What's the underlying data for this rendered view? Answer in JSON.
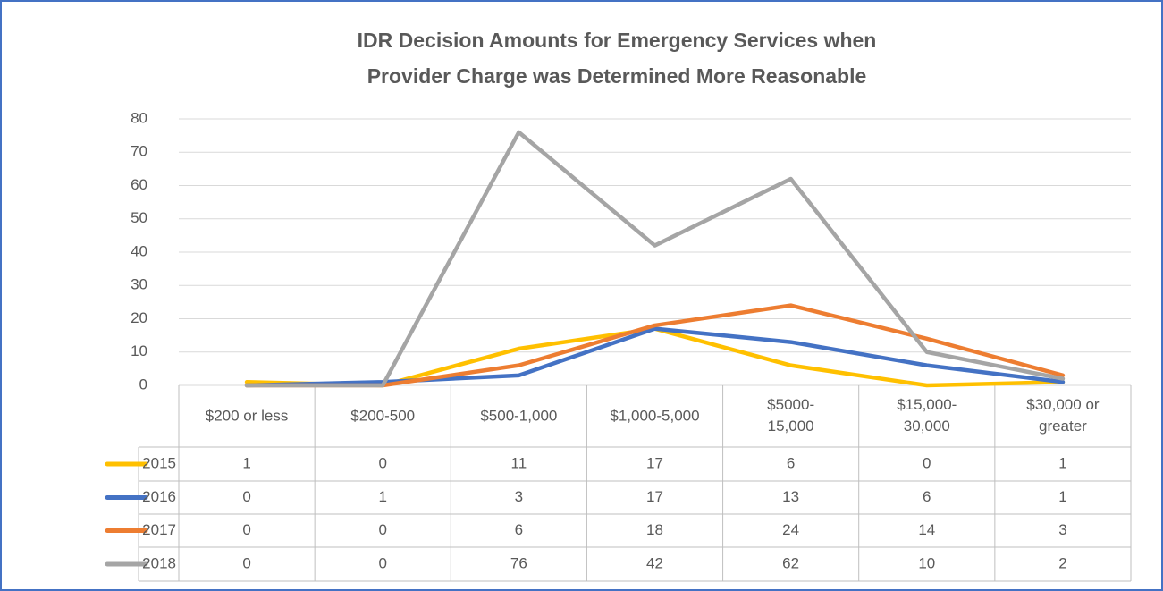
{
  "chart_data": {
    "type": "line",
    "title": [
      "IDR Decision Amounts for Emergency Services when",
      "Provider Charge was Determined More Reasonable"
    ],
    "categories": [
      "$200 or less",
      "$200-500",
      "$500-1,000",
      "$1,000-5,000",
      "$5000-\n15,000",
      "$15,000-\n30,000",
      "$30,000 or\ngreater"
    ],
    "series": [
      {
        "name": "2015",
        "color": "#FFC000",
        "values": [
          1,
          0,
          11,
          17,
          6,
          0,
          1
        ]
      },
      {
        "name": "2016",
        "color": "#4472C4",
        "values": [
          0,
          1,
          3,
          17,
          13,
          6,
          1
        ]
      },
      {
        "name": "2017",
        "color": "#ED7D31",
        "values": [
          0,
          0,
          6,
          18,
          24,
          14,
          3
        ]
      },
      {
        "name": "2018",
        "color": "#A5A5A5",
        "values": [
          0,
          0,
          76,
          42,
          62,
          10,
          2
        ]
      }
    ],
    "ylim": [
      0,
      80
    ],
    "yticks": [
      0,
      10,
      20,
      30,
      40,
      50,
      60,
      70,
      80
    ],
    "grid": true
  }
}
